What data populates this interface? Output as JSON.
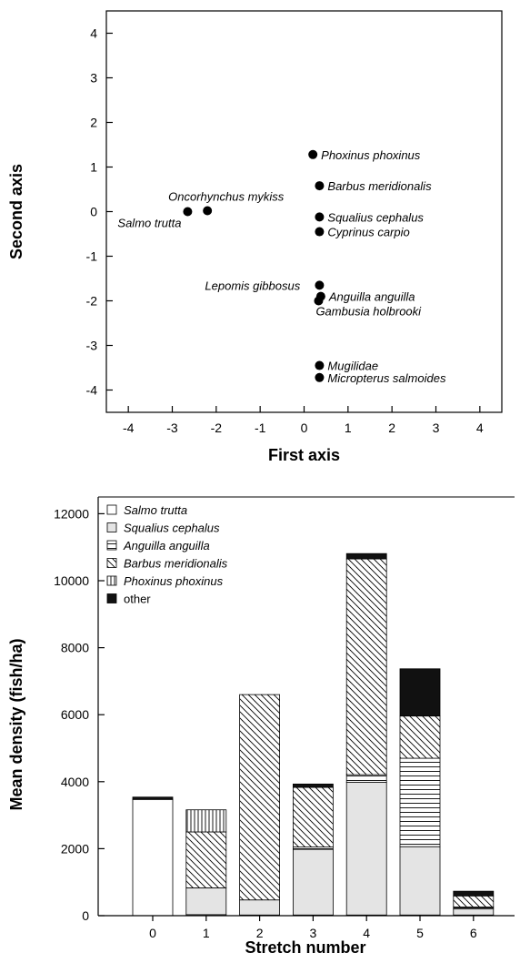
{
  "chart_data": [
    {
      "type": "scatter",
      "xlabel": "First axis",
      "ylabel": "Second axis",
      "xlim": [
        -4.5,
        4.5
      ],
      "ylim": [
        -4.5,
        4.5
      ],
      "xticks": [
        "-4",
        "-3",
        "-2",
        "-1",
        "0",
        "1",
        "2",
        "3",
        "4"
      ],
      "yticks": [
        "4",
        "3",
        "2",
        "1",
        "0",
        "-1",
        "-2",
        "-3",
        "-4"
      ],
      "points": [
        {
          "label": "Phoxinus phoxinus",
          "x": 0.2,
          "y": 1.28
        },
        {
          "label": "Barbus meridionalis",
          "x": 0.35,
          "y": 0.58
        },
        {
          "label": "Oncorhynchus mykiss",
          "x": -2.2,
          "y": 0.02
        },
        {
          "label": "Salmo trutta",
          "x": -2.65,
          "y": 0.0
        },
        {
          "label": "Squalius cephalus",
          "x": 0.35,
          "y": -0.12
        },
        {
          "label": "Cyprinus carpio",
          "x": 0.35,
          "y": -0.45
        },
        {
          "label": "Lepomis gibbosus",
          "x": 0.35,
          "y": -1.65
        },
        {
          "label": "Anguilla anguilla",
          "x": 0.38,
          "y": -1.9
        },
        {
          "label": "Gambusia holbrooki",
          "x": 0.33,
          "y": -2.0
        },
        {
          "label": "Mugilidae",
          "x": 0.35,
          "y": -3.45
        },
        {
          "label": "Micropterus salmoides",
          "x": 0.35,
          "y": -3.72
        }
      ]
    },
    {
      "type": "bar",
      "stacked": true,
      "xlabel": "Stretch number",
      "ylabel": "Mean density (fish/ha)",
      "ylim": [
        0,
        12500
      ],
      "yticks": [
        "12000",
        "10000",
        "8000",
        "6000",
        "4000",
        "2000",
        "0"
      ],
      "categories": [
        "0",
        "1",
        "2",
        "3",
        "4",
        "5",
        "6"
      ],
      "legend_position": "top-left",
      "series": [
        {
          "name": "Salmo trutta",
          "pattern": "white",
          "values": [
            3470,
            30,
            20,
            20,
            20,
            20,
            20
          ]
        },
        {
          "name": "Squalius cephalus",
          "pattern": "lightgray",
          "values": [
            0,
            800,
            450,
            1960,
            3960,
            2040,
            180
          ]
        },
        {
          "name": "Anguilla anguilla",
          "pattern": "horizontal-lines",
          "values": [
            0,
            0,
            0,
            70,
            230,
            2640,
            60
          ]
        },
        {
          "name": "Barbus meridionalis",
          "pattern": "diagonal-lines",
          "values": [
            0,
            1670,
            6130,
            1780,
            6440,
            1260,
            330
          ]
        },
        {
          "name": "Phoxinus phoxinus",
          "pattern": "vertical-lines",
          "values": [
            0,
            660,
            0,
            0,
            0,
            0,
            0
          ]
        },
        {
          "name": "other",
          "pattern": "black",
          "values": [
            70,
            0,
            0,
            100,
            160,
            1410,
            140
          ]
        }
      ]
    }
  ]
}
